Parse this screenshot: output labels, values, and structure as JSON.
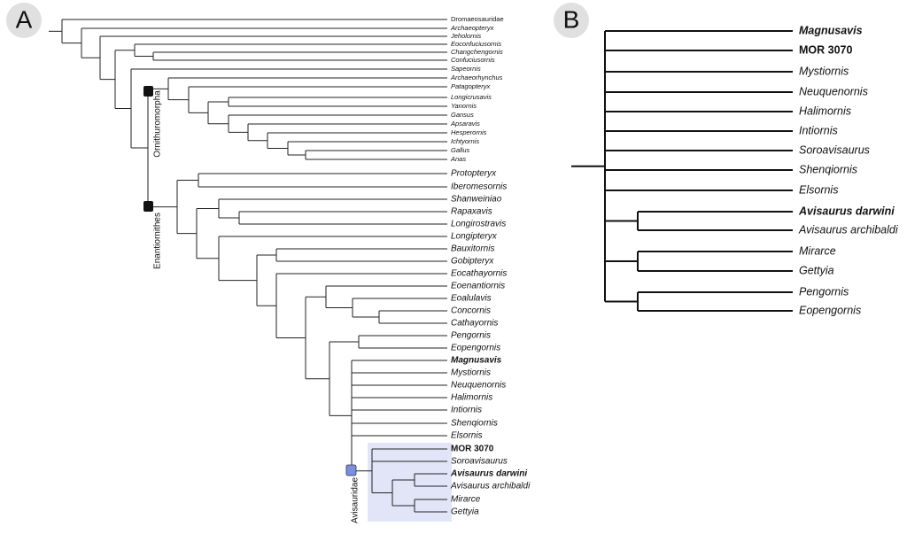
{
  "panels": [
    {
      "label": "A",
      "taxa": [
        "Dromaeosauridae",
        "Archaeopteryx",
        "Jeholornis",
        "Eoconfuciusornis",
        "Changchengornis",
        "Confuciusornis",
        "Sapeornis",
        "Archaeorhynchus",
        "Patagopteryx",
        "Longicrusavis",
        "Yanornis",
        "Gansus",
        "Apsaravis",
        "Hesperornis",
        "Ichtyornis",
        "Gallus",
        "Anas",
        "Protopteryx",
        "Iberomesornis",
        "Shanweiniao",
        "Rapaxavis",
        "Longirostravis",
        "Longipteryx",
        "Bauxitornis",
        "Gobipteryx",
        "Eocathayornis",
        "Eoenantiornis",
        "Eoalulavis",
        "Concornis",
        "Cathayornis",
        "Pengornis",
        "Eopengornis",
        "Magnusavis",
        "Mystiornis",
        "Neuquenornis",
        "Halimornis",
        "Intiornis",
        "Shenqiornis",
        "Elsornis",
        "MOR 3070",
        "Soroavisaurus",
        "Avisaurus darwini",
        "Avisaurus archibaldi",
        "Mirarce",
        "Gettyia"
      ],
      "clades": [
        "Ornithuromorpha",
        "Enantiornithes",
        "Avisauridae"
      ]
    },
    {
      "label": "B",
      "taxa": [
        "Magnusavis",
        "MOR 3070",
        "Mystiornis",
        "Neuquenornis",
        "Halimornis",
        "Intiornis",
        "Soroavisaurus",
        "Shenqiornis",
        "Elsornis",
        "Avisaurus darwini",
        "Avisaurus archibaldi",
        "Mirarce",
        "Gettyia",
        "Pengornis",
        "Eopengornis"
      ]
    }
  ]
}
